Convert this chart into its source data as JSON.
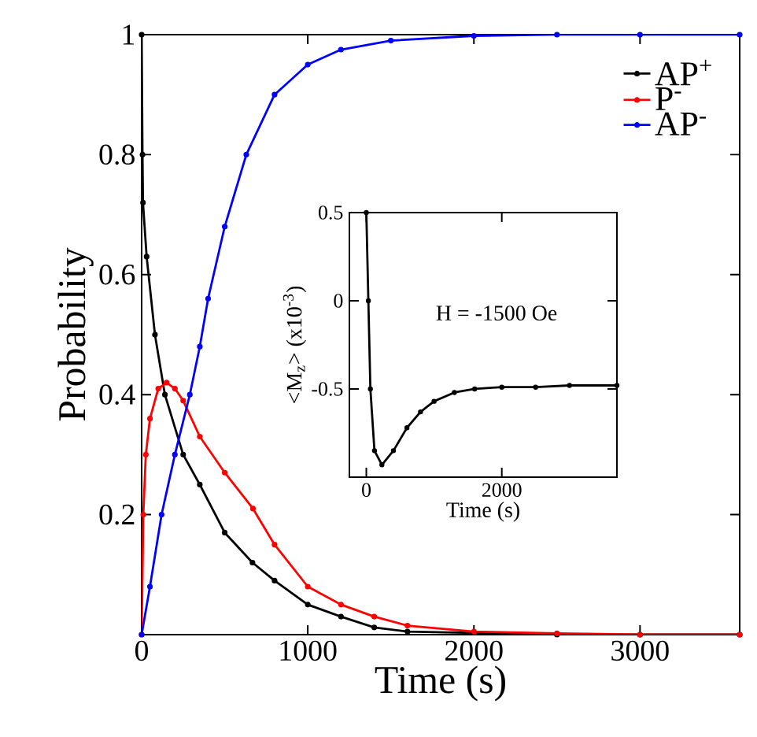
{
  "chart_data": [
    {
      "type": "line",
      "xlabel": "Time (s)",
      "ylabel": "Probability",
      "xlim": [
        0,
        3600
      ],
      "ylim": [
        0,
        1
      ],
      "xticks": [
        0,
        1000,
        2000,
        3000
      ],
      "yticks": [
        0.2,
        0.4,
        0.6,
        0.8,
        1
      ],
      "legend": "top right",
      "marker": "circle",
      "line_style": "solid",
      "series": [
        {
          "name": "AP$^{+}$",
          "color": "#000000",
          "x": [
            0,
            5,
            8,
            30,
            80,
            140,
            250,
            350,
            500,
            667,
            800,
            1000,
            1200,
            1400,
            1600,
            2000,
            2500,
            3000,
            3600
          ],
          "values": [
            1,
            0.8,
            0.72,
            0.63,
            0.5,
            0.4,
            0.3,
            0.25,
            0.17,
            0.12,
            0.09,
            0.05,
            0.03,
            0.012,
            0.005,
            null,
            0,
            0,
            0
          ]
        },
        {
          "name": "P$^{-}$",
          "color": "#ff0000",
          "x": [
            0,
            10,
            25,
            50,
            100,
            150,
            200,
            250,
            350,
            500,
            670,
            800,
            1000,
            1200,
            1400,
            1600,
            2000,
            2500,
            3000,
            3600
          ],
          "values": [
            0,
            0.2,
            0.3,
            0.36,
            0.41,
            0.42,
            0.41,
            0.39,
            0.33,
            0.27,
            0.21,
            0.15,
            0.08,
            0.05,
            0.03,
            0.015,
            0.005,
            0.002,
            0,
            0
          ]
        },
        {
          "name": "AP$^{-}$",
          "color": "#0000ff",
          "x": [
            0,
            50,
            120,
            200,
            290,
            350,
            400,
            500,
            630,
            800,
            1000,
            1200,
            1500,
            2000,
            2500,
            3000,
            3600
          ],
          "values": [
            0,
            0.08,
            0.2,
            0.3,
            0.4,
            0.48,
            0.56,
            0.68,
            0.8,
            0.9,
            0.95,
            0.975,
            0.99,
            0.998,
            1,
            1,
            1
          ]
        }
      ]
    },
    {
      "type": "line",
      "xlabel": "Time (s)",
      "ylabel": "<M$_{z}$> (x10$^{-3}$)",
      "xlim": [
        -250,
        3700
      ],
      "ylim": [
        -1,
        0.5
      ],
      "xticks": [
        0,
        2000
      ],
      "yticks": [
        -0.5,
        0,
        0.5
      ],
      "marker": "circle",
      "line_style": "solid",
      "annotations": [
        "H = -1500 Oe"
      ],
      "series": [
        {
          "color": "#000000",
          "x": [
            0,
            30,
            60,
            120,
            230,
            400,
            600,
            800,
            1000,
            1300,
            1600,
            2000,
            2500,
            3000,
            3700
          ],
          "values": [
            0.5,
            0,
            -0.5,
            -0.85,
            -0.93,
            -0.85,
            -0.72,
            -0.63,
            -0.57,
            -0.52,
            -0.5,
            -0.49,
            -0.49,
            -0.48,
            -0.48
          ]
        }
      ]
    }
  ]
}
